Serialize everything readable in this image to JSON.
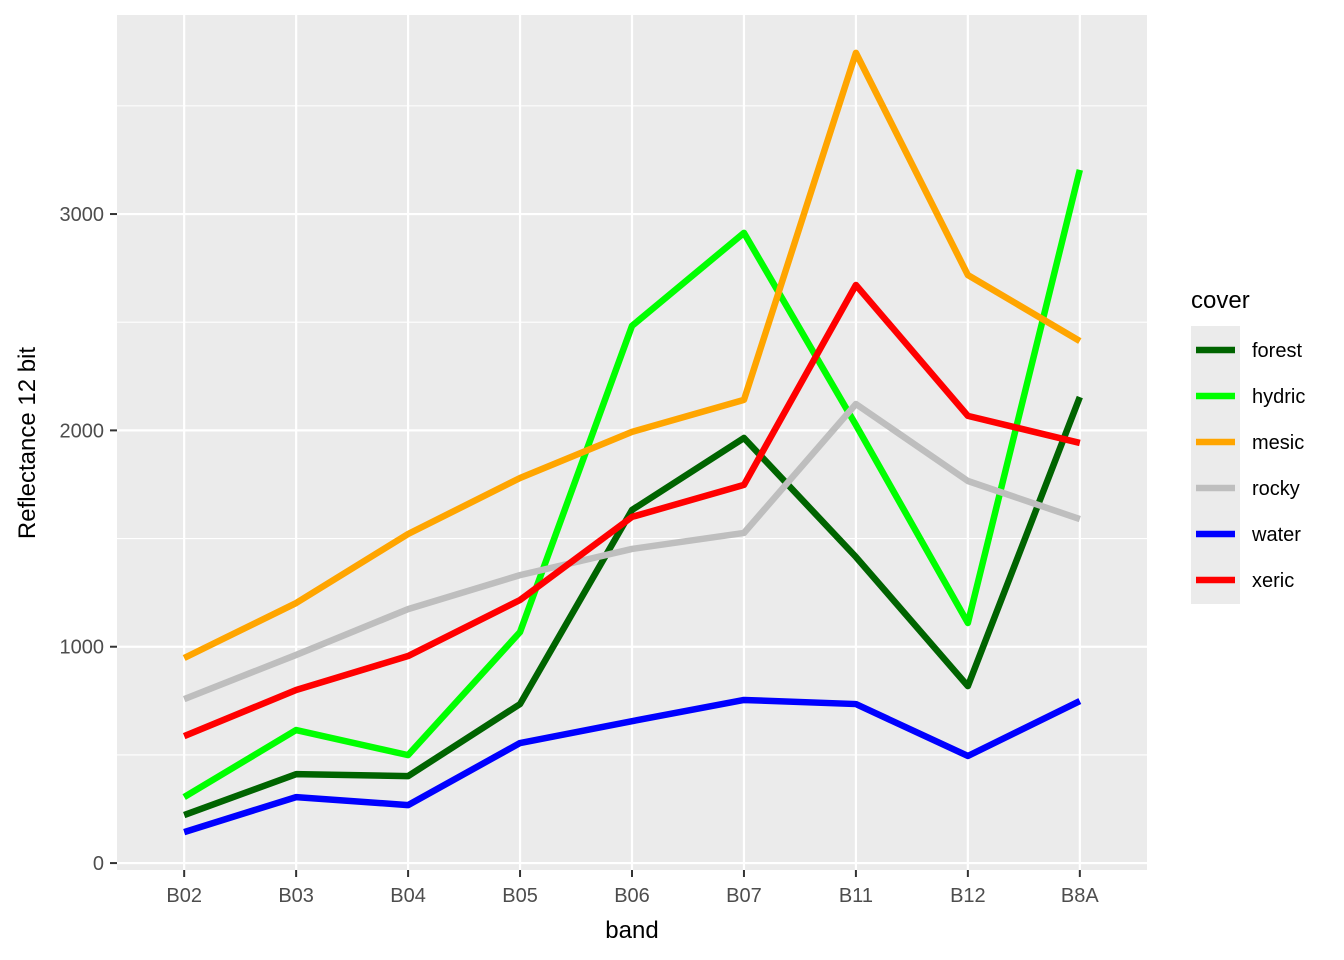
{
  "chart_data": {
    "type": "line",
    "title": "",
    "xlabel": "band",
    "ylabel": "Reflectance 12 bit",
    "categories": [
      "B02",
      "B03",
      "B04",
      "B05",
      "B06",
      "B07",
      "B11",
      "B12",
      "B8A"
    ],
    "ylim": [
      -32,
      3920
    ],
    "yticks": [
      0,
      1000,
      2000,
      3000
    ],
    "grid": true,
    "legend": {
      "title": "cover",
      "placement": "right"
    },
    "series": [
      {
        "name": "forest",
        "color": "#006400",
        "values": [
          222,
          411,
          402,
          735,
          1632,
          1965,
          1415,
          818,
          2154
        ]
      },
      {
        "name": "hydric",
        "color": "#00FF00",
        "values": [
          305,
          615,
          499,
          1068,
          2483,
          2913,
          2025,
          1110,
          3204
        ]
      },
      {
        "name": "mesic",
        "color": "#FFA500",
        "values": [
          948,
          1202,
          1521,
          1780,
          1993,
          2141,
          3745,
          2718,
          2413
        ]
      },
      {
        "name": "rocky",
        "color": "#BEBEBE",
        "values": [
          758,
          962,
          1174,
          1331,
          1452,
          1526,
          2122,
          1766,
          1590
        ]
      },
      {
        "name": "water",
        "color": "#0000FF",
        "values": [
          143,
          305,
          268,
          555,
          656,
          754,
          735,
          495,
          749
        ]
      },
      {
        "name": "xeric",
        "color": "#FF0000",
        "values": [
          587,
          800,
          957,
          1216,
          1600,
          1748,
          2672,
          2067,
          1942
        ]
      }
    ]
  }
}
